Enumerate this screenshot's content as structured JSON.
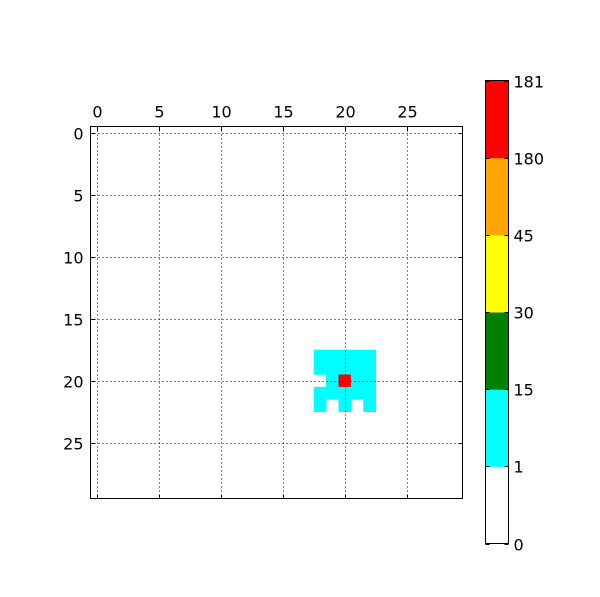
{
  "chart_data": {
    "type": "heatmap",
    "title": "",
    "xlabel": "",
    "ylabel": "",
    "xlim": [
      -0.5,
      29.5
    ],
    "ylim": [
      29.5,
      -0.5
    ],
    "x_axis_position": "top",
    "grid": true,
    "x_ticks": [
      0,
      5,
      10,
      15,
      20,
      25
    ],
    "y_ticks": [
      0,
      5,
      10,
      15,
      20,
      25
    ],
    "background_value": 0,
    "cells": [
      {
        "row": 18,
        "col": 18,
        "value": 1
      },
      {
        "row": 18,
        "col": 19,
        "value": 1
      },
      {
        "row": 18,
        "col": 20,
        "value": 1
      },
      {
        "row": 18,
        "col": 21,
        "value": 1
      },
      {
        "row": 18,
        "col": 22,
        "value": 1
      },
      {
        "row": 19,
        "col": 18,
        "value": 1
      },
      {
        "row": 19,
        "col": 19,
        "value": 1
      },
      {
        "row": 19,
        "col": 20,
        "value": 1
      },
      {
        "row": 19,
        "col": 21,
        "value": 1
      },
      {
        "row": 19,
        "col": 22,
        "value": 1
      },
      {
        "row": 20,
        "col": 19,
        "value": 1
      },
      {
        "row": 20,
        "col": 20,
        "value": 181
      },
      {
        "row": 20,
        "col": 21,
        "value": 1
      },
      {
        "row": 20,
        "col": 22,
        "value": 1
      },
      {
        "row": 21,
        "col": 18,
        "value": 1
      },
      {
        "row": 21,
        "col": 19,
        "value": 1
      },
      {
        "row": 21,
        "col": 20,
        "value": 1
      },
      {
        "row": 21,
        "col": 21,
        "value": 1
      },
      {
        "row": 21,
        "col": 22,
        "value": 1
      },
      {
        "row": 22,
        "col": 18,
        "value": 1
      },
      {
        "row": 22,
        "col": 20,
        "value": 1
      },
      {
        "row": 22,
        "col": 22,
        "value": 1
      }
    ],
    "colorbar": {
      "boundaries": [
        "0",
        "1",
        "15",
        "30",
        "45",
        "180",
        "181"
      ],
      "colors": [
        "#ffffff",
        "#00ffff",
        "#008000",
        "#ffff00",
        "#ffa500",
        "#ff0000"
      ],
      "placement": "right"
    }
  }
}
